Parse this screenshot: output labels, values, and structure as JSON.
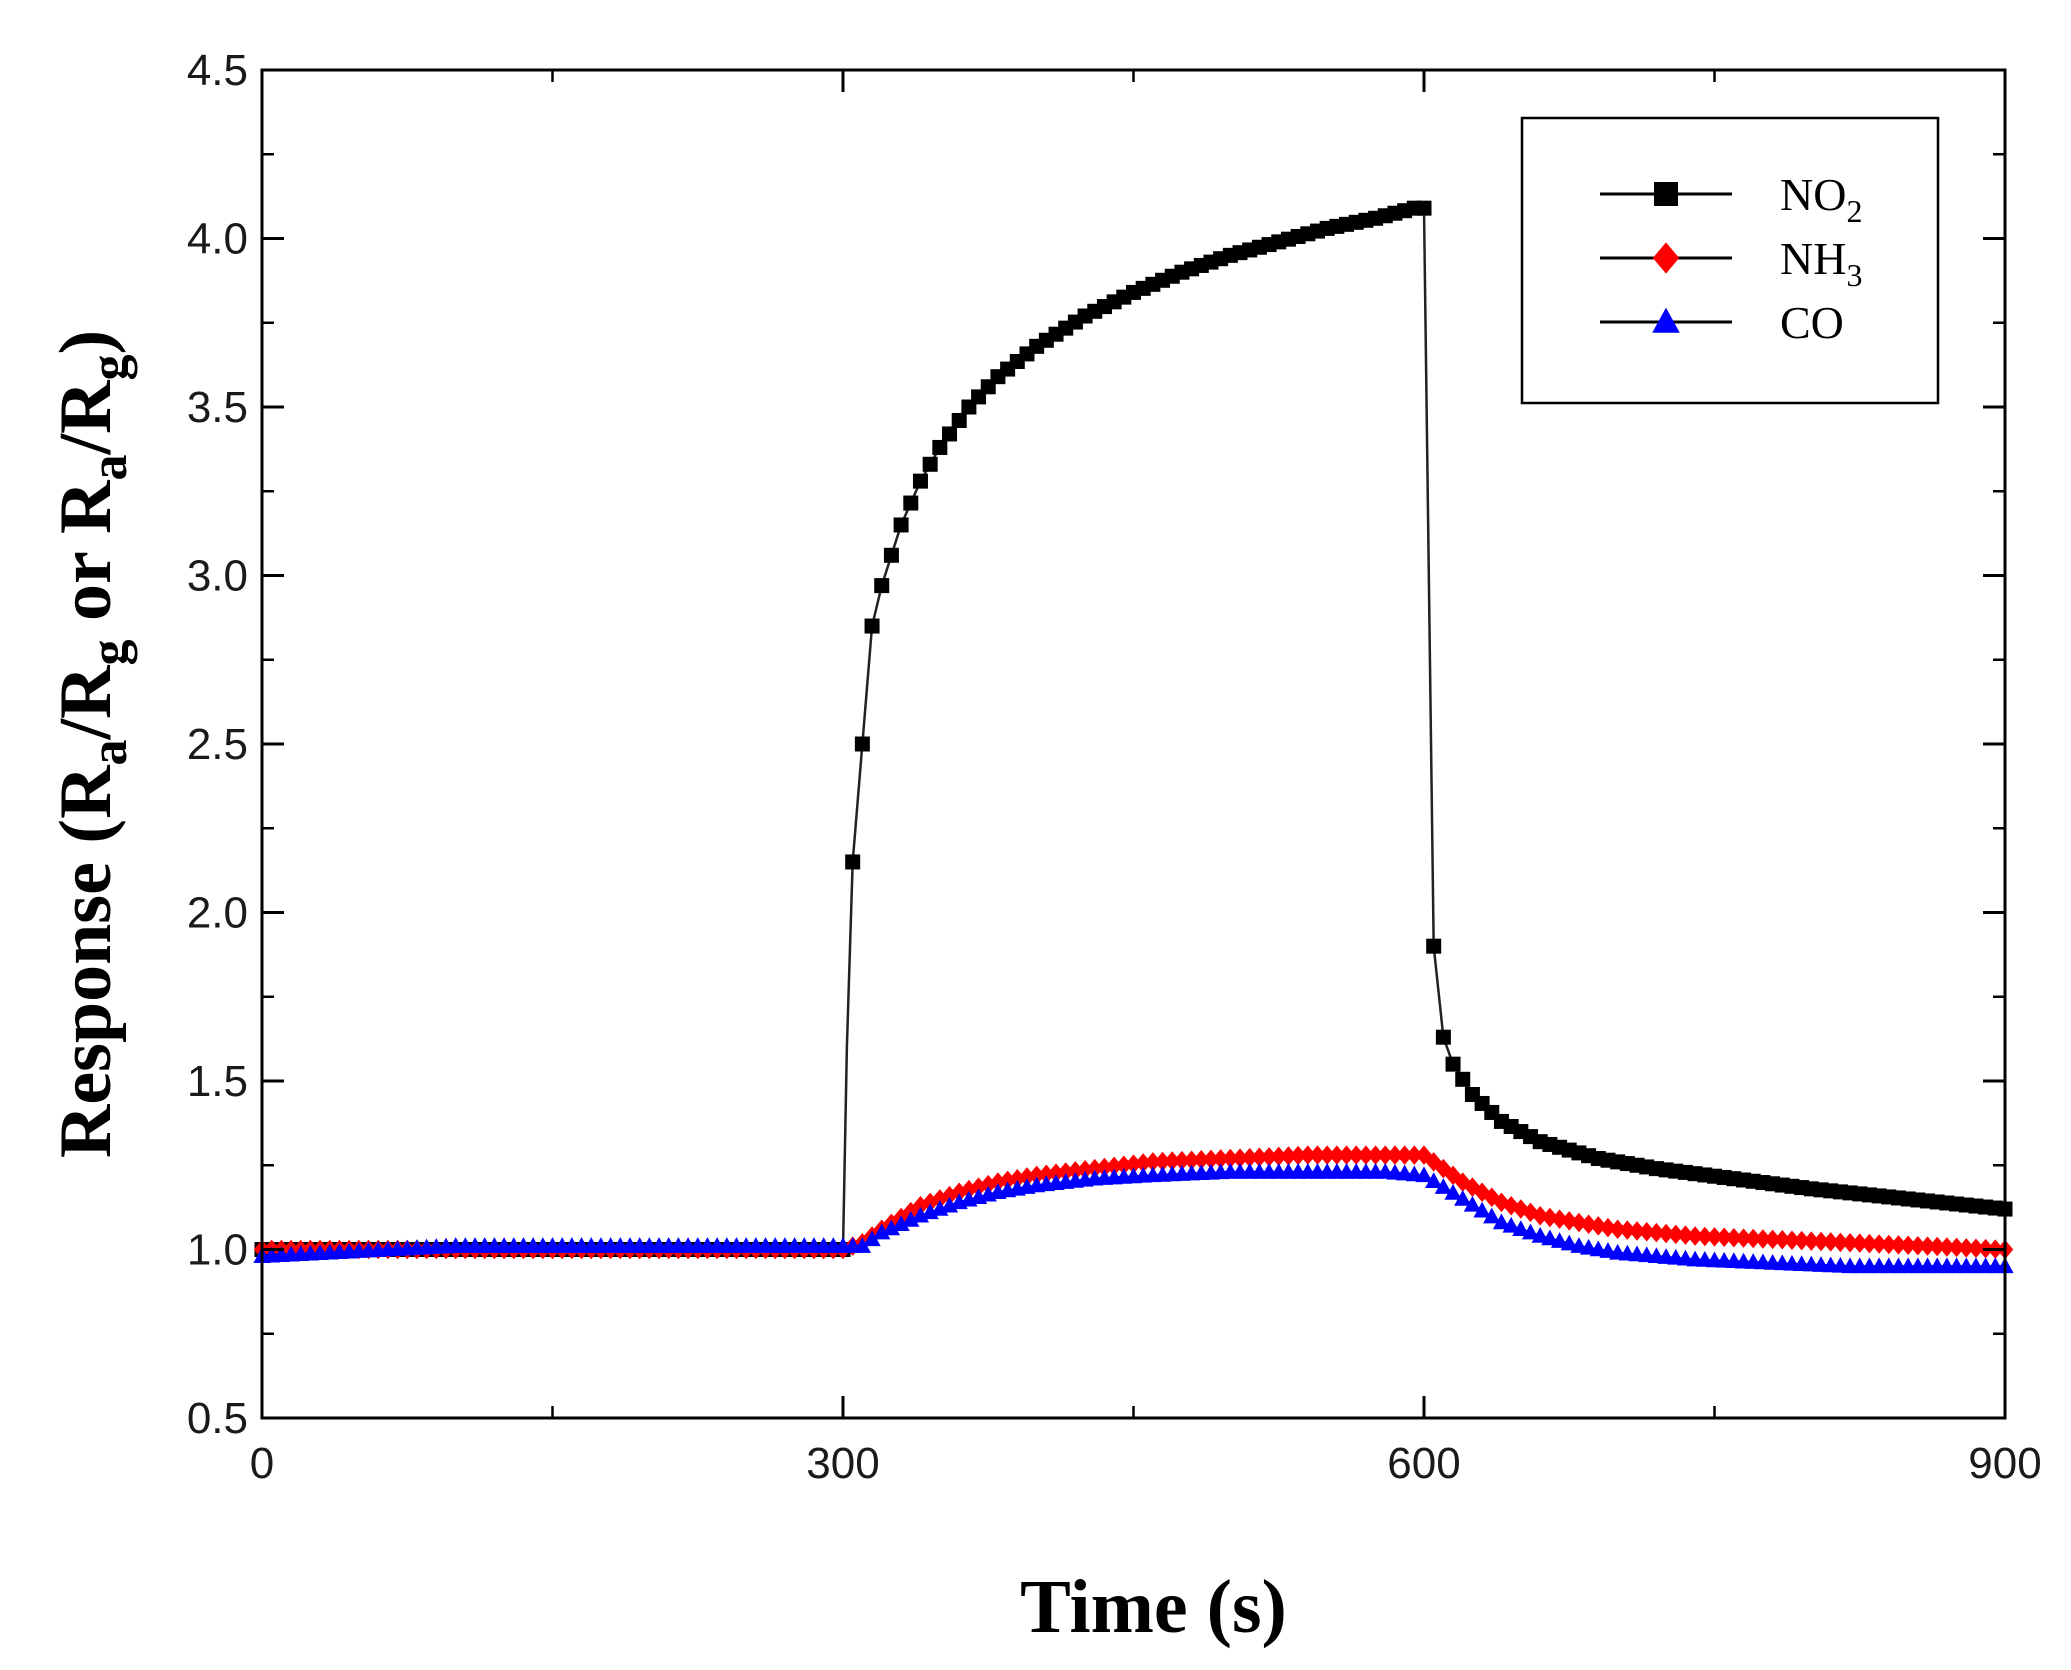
{
  "chart_data": {
    "type": "line",
    "title": "",
    "xlabel": "Time (s)",
    "ylabel": {
      "base": "Response (R",
      "sub1": "a",
      "mid1": "/R",
      "sub2": "g",
      "mid2": " or R",
      "sub3": "a",
      "mid3": "/R",
      "sub4": "g",
      "end": ")"
    },
    "xlim": [
      0,
      900
    ],
    "ylim": [
      0.5,
      4.5
    ],
    "x_ticks": [
      0,
      300,
      600,
      900
    ],
    "x_tick_labels": [
      "0",
      "300",
      "600",
      "900"
    ],
    "y_ticks": [
      0.5,
      1.0,
      1.5,
      2.0,
      2.5,
      3.0,
      3.5,
      4.0,
      4.5
    ],
    "y_tick_labels": [
      "0.5",
      "1.0",
      "1.5",
      "2.0",
      "2.5",
      "3.0",
      "3.5",
      "4.0",
      "4.5"
    ],
    "legend_position": "top-right",
    "series": [
      {
        "name": "NO2",
        "label_main": "NO",
        "label_sub": "2",
        "color": "#000000",
        "marker": "square",
        "x": [
          0,
          250,
          280,
          300,
          302,
          305,
          310,
          315,
          320,
          325,
          330,
          340,
          350,
          365,
          380,
          400,
          425,
          450,
          475,
          500,
          525,
          550,
          575,
          595,
          600,
          605,
          610,
          615,
          625,
          640,
          660,
          690,
          720,
          760,
          800,
          850,
          900
        ],
        "values": [
          1.0,
          1.0,
          1.0,
          1.0,
          1.6,
          2.15,
          2.5,
          2.85,
          2.97,
          3.06,
          3.15,
          3.28,
          3.38,
          3.5,
          3.59,
          3.68,
          3.77,
          3.84,
          3.9,
          3.95,
          3.99,
          4.03,
          4.06,
          4.09,
          4.09,
          1.9,
          1.63,
          1.55,
          1.46,
          1.38,
          1.32,
          1.27,
          1.24,
          1.21,
          1.18,
          1.15,
          1.12
        ]
      },
      {
        "name": "NH3",
        "label_main": "NH",
        "label_sub": "3",
        "color": "#ff0000",
        "marker": "diamond",
        "x": [
          0,
          100,
          200,
          300,
          310,
          320,
          340,
          360,
          380,
          400,
          430,
          460,
          500,
          540,
          580,
          600,
          620,
          640,
          660,
          680,
          700,
          740,
          780,
          820,
          860,
          900
        ],
        "values": [
          1.0,
          1.0,
          1.0,
          1.0,
          1.02,
          1.06,
          1.13,
          1.17,
          1.2,
          1.22,
          1.24,
          1.26,
          1.27,
          1.28,
          1.28,
          1.28,
          1.2,
          1.14,
          1.1,
          1.08,
          1.06,
          1.04,
          1.03,
          1.02,
          1.01,
          1.0
        ]
      },
      {
        "name": "CO",
        "label_main": "CO",
        "label_sub": "",
        "color": "#0000ff",
        "marker": "triangle",
        "x": [
          0,
          100,
          200,
          300,
          310,
          320,
          340,
          360,
          380,
          400,
          430,
          460,
          500,
          540,
          580,
          600,
          620,
          640,
          660,
          680,
          700,
          740,
          780,
          820,
          860,
          900
        ],
        "values": [
          0.98,
          1.01,
          1.01,
          1.01,
          1.01,
          1.05,
          1.1,
          1.14,
          1.17,
          1.19,
          1.21,
          1.22,
          1.23,
          1.23,
          1.23,
          1.22,
          1.15,
          1.08,
          1.04,
          1.01,
          0.99,
          0.97,
          0.96,
          0.95,
          0.95,
          0.95
        ]
      }
    ]
  }
}
